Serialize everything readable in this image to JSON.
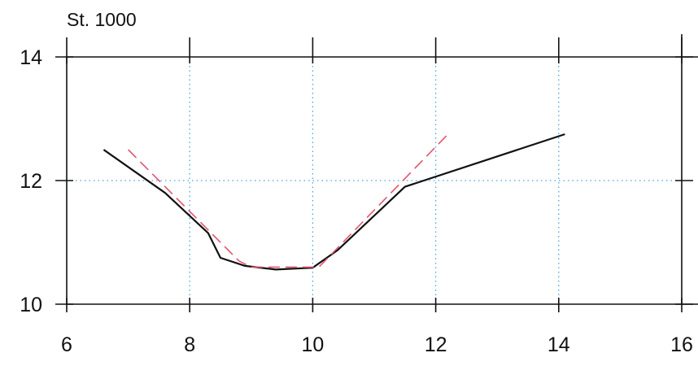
{
  "chart_data": {
    "type": "line",
    "title": "St. 1000",
    "xlabel": "",
    "ylabel": "",
    "xlim": [
      6,
      16
    ],
    "ylim": [
      10,
      14
    ],
    "xticks": [
      6,
      8,
      10,
      12,
      14,
      16
    ],
    "yticks": [
      10,
      12,
      14
    ],
    "x_tick_labels": [
      "6",
      "8",
      "10",
      "12",
      "14",
      "16"
    ],
    "y_tick_labels": [
      "10",
      "12",
      "14"
    ],
    "grid": {
      "x": [
        8,
        10,
        12,
        14
      ],
      "y": [
        12
      ],
      "style": "dotted",
      "color": "#4aa3df"
    },
    "legend": "none",
    "series": [
      {
        "style": "solid",
        "color": "#111111",
        "points": [
          [
            6.6,
            12.5
          ],
          [
            7.6,
            11.8
          ],
          [
            8.3,
            11.15
          ],
          [
            8.5,
            10.75
          ],
          [
            8.9,
            10.62
          ],
          [
            9.4,
            10.56
          ],
          [
            10.0,
            10.59
          ],
          [
            10.4,
            10.87
          ],
          [
            11.5,
            11.9
          ],
          [
            14.1,
            12.75
          ]
        ]
      },
      {
        "style": "dashed",
        "color": "#e0556f",
        "points": [
          [
            7.0,
            12.5
          ],
          [
            8.8,
            10.7
          ],
          [
            9.0,
            10.6
          ],
          [
            10.1,
            10.6
          ],
          [
            12.2,
            12.75
          ]
        ]
      }
    ]
  }
}
